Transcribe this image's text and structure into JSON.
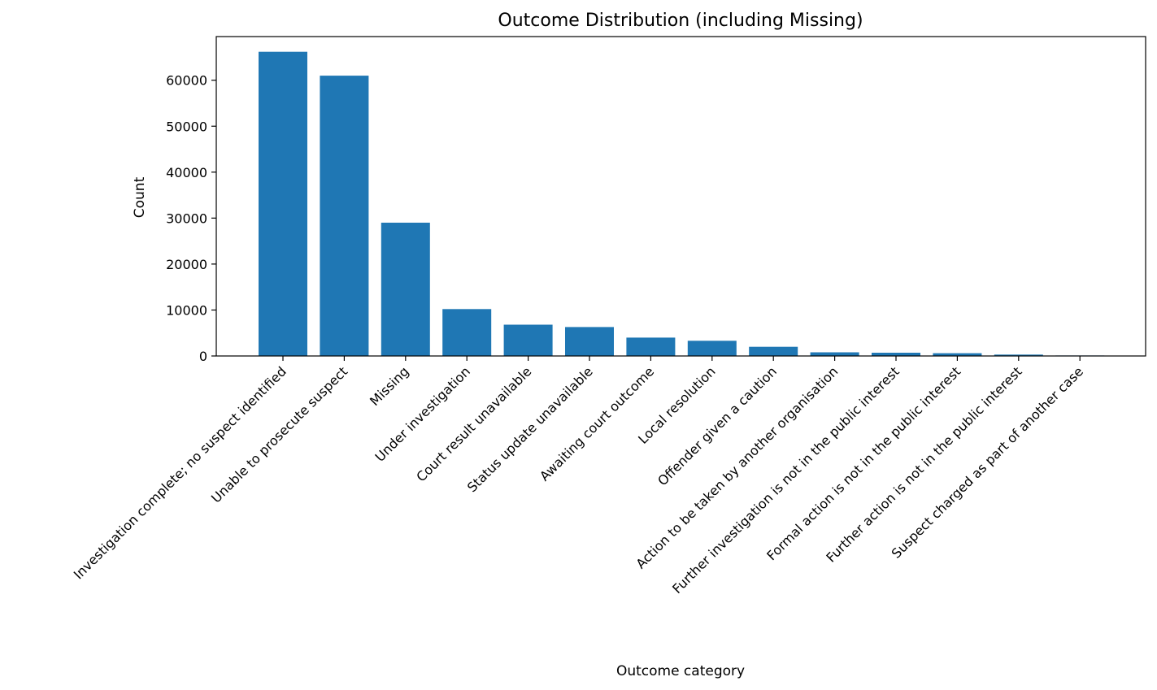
{
  "chart_data": {
    "type": "bar",
    "title": "Outcome Distribution (including Missing)",
    "xlabel": "Outcome category",
    "ylabel": "Count",
    "ylim": [
      0,
      69500
    ],
    "yticks": [
      0,
      10000,
      20000,
      30000,
      40000,
      50000,
      60000
    ],
    "grid": false,
    "bar_color": "#1f77b4",
    "categories": [
      "Investigation complete; no suspect identified",
      "Unable to prosecute suspect",
      "Missing",
      "Under investigation",
      "Court result unavailable",
      "Status update unavailable",
      "Awaiting court outcome",
      "Local resolution",
      "Offender given a caution",
      "Action to be taken by another organisation",
      "Further investigation is not in the public interest",
      "Formal action is not in the public interest",
      "Further action is not in the public interest",
      "Suspect charged as part of another case"
    ],
    "values": [
      66200,
      61000,
      29000,
      10200,
      6800,
      6300,
      4000,
      3300,
      2000,
      800,
      700,
      600,
      300,
      100
    ]
  }
}
